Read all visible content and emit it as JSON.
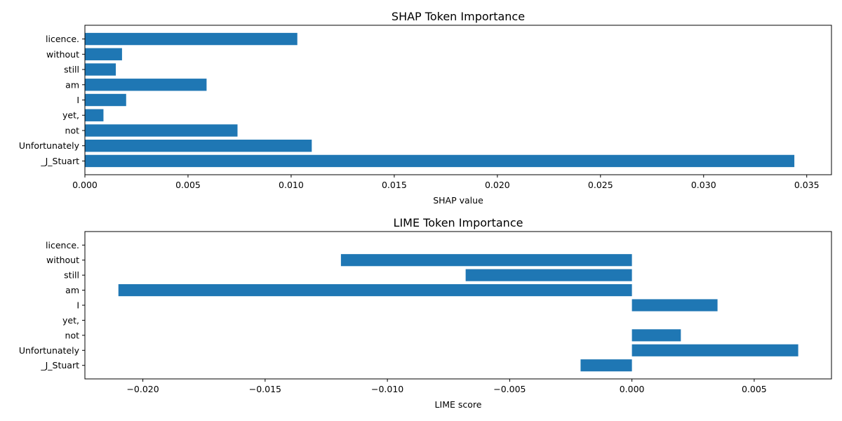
{
  "chart_data": [
    {
      "type": "bar",
      "orientation": "horizontal",
      "title": "SHAP Token Importance",
      "xlabel": "SHAP value",
      "ylabel": "",
      "categories": [
        "_J_Stuart",
        "Unfortunately",
        "not",
        "yet,",
        "I",
        "am",
        "still",
        "without",
        "licence."
      ],
      "values": [
        0.0344,
        0.011,
        0.0074,
        0.0009,
        0.002,
        0.0059,
        0.0015,
        0.0018,
        0.0103
      ],
      "xlim": [
        0,
        0.0362
      ],
      "xticks": [
        0,
        0.005,
        0.01,
        0.015,
        0.02,
        0.025,
        0.03,
        0.035
      ],
      "xtick_labels": [
        "0.000",
        "0.005",
        "0.010",
        "0.015",
        "0.020",
        "0.025",
        "0.030",
        "0.035"
      ],
      "bar_color": "#1f77b4",
      "grid": false
    },
    {
      "type": "bar",
      "orientation": "horizontal",
      "title": "LIME Token Importance",
      "xlabel": "LIME score",
      "ylabel": "",
      "categories": [
        "_J_Stuart",
        "Unfortunately",
        "not",
        "yet,",
        "I",
        "am",
        "still",
        "without",
        "licence."
      ],
      "values": [
        -0.0021,
        0.0068,
        0.002,
        0.0,
        0.0035,
        -0.021,
        -0.0068,
        -0.0119,
        0.0
      ],
      "xlim": [
        -0.02237,
        0.00816
      ],
      "xticks": [
        -0.02,
        -0.015,
        -0.01,
        -0.005,
        0,
        0.005
      ],
      "xtick_labels": [
        "−0.020",
        "−0.015",
        "−0.010",
        "−0.005",
        "0.000",
        "0.005"
      ],
      "bar_color": "#1f77b4",
      "grid": false
    }
  ]
}
